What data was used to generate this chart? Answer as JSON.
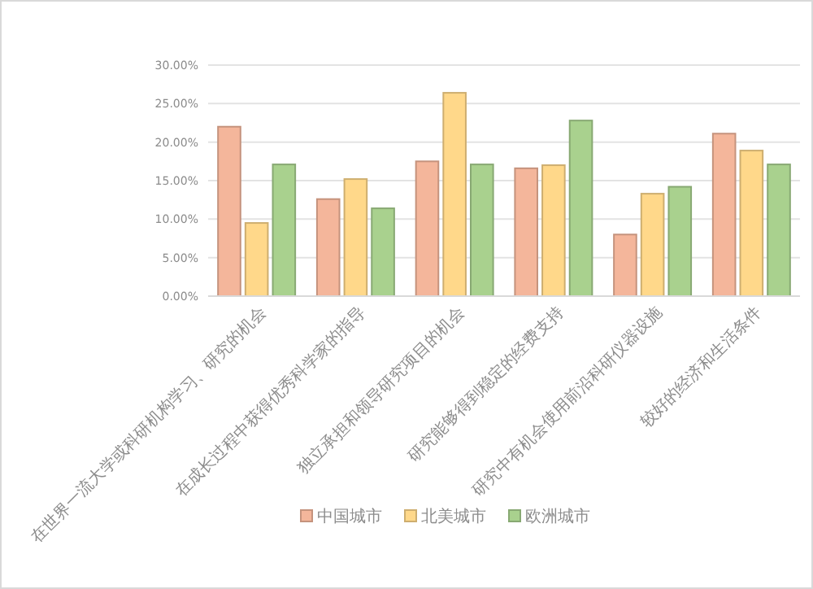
{
  "chart_data": {
    "type": "bar",
    "categories": [
      "在世界一流大学或科研机构学习、研究的机会",
      "在成长过程中获得优秀科学家的指导",
      "独立承担和领导研究项目的机会",
      "研究能够得到稳定的经费支持",
      "研究中有机会使用前沿科研仪器设施",
      "较好的经济和生活条件"
    ],
    "series": [
      {
        "name": "中国城市",
        "color": "#f4b69b",
        "values": [
          22.0,
          12.6,
          17.5,
          16.6,
          8.0,
          21.1
        ]
      },
      {
        "name": "北美城市",
        "color": "#ffd88a",
        "values": [
          9.5,
          15.2,
          26.4,
          17.0,
          13.3,
          18.9
        ]
      },
      {
        "name": "欧洲城市",
        "color": "#a9d18e",
        "values": [
          17.1,
          11.4,
          17.1,
          22.8,
          14.2,
          17.1
        ]
      }
    ],
    "ylim": [
      0,
      30
    ],
    "yticks": [
      {
        "value": 0,
        "label": "0.00%"
      },
      {
        "value": 5,
        "label": "5.00%"
      },
      {
        "value": 10,
        "label": "10.00%"
      },
      {
        "value": 15,
        "label": "15.00%"
      },
      {
        "value": 20,
        "label": "20.00%"
      },
      {
        "value": 25,
        "label": "25.00%"
      },
      {
        "value": 30,
        "label": "30.00%"
      }
    ],
    "grid": "y",
    "legend": "bottom"
  }
}
